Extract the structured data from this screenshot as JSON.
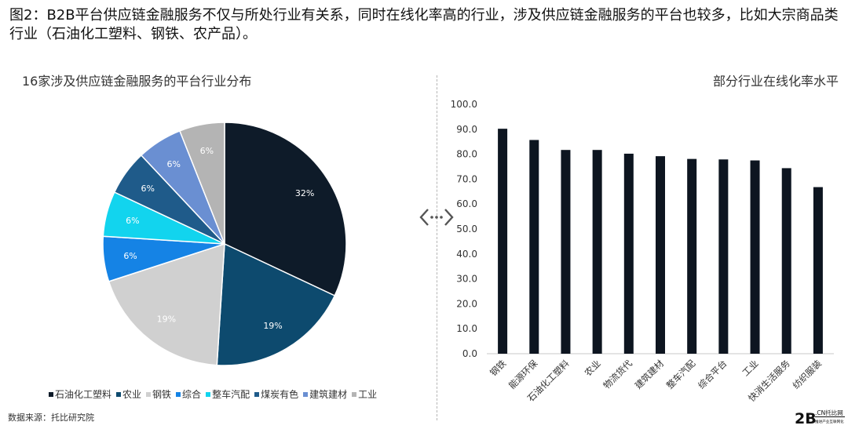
{
  "caption": "图2：B2B平台供应链金融服务不仅与所处行业有关系，同时在线化率高的行业，涉及供应链金融服务的平台也较多，比如大宗商品类行业（石油化工塑料、钢铁、农产品）。",
  "source": "数据来源：托比研究院",
  "logo": {
    "big": "2B",
    "small_top": ".CN托比网",
    "small_bottom": "推进产业互联网化"
  },
  "chart_data": [
    {
      "type": "pie",
      "title": "16家涉及供应链金融服务的平台行业分布",
      "categories": [
        "石油化工塑料",
        "农业",
        "钢铁",
        "综合",
        "整车汽配",
        "煤炭有色",
        "建筑建材",
        "工业"
      ],
      "values": [
        32,
        19,
        19,
        6,
        6,
        6,
        6,
        6
      ],
      "labels": [
        "32%",
        "19%",
        "19%",
        "6%",
        "6%",
        "6%",
        "6%",
        "6%"
      ],
      "colors": [
        "#0e1b29",
        "#0d4a6e",
        "#d0d0d0",
        "#1583e5",
        "#12d4ee",
        "#1f5b8a",
        "#6a8fd2",
        "#b4b4b4"
      ],
      "label_colors": [
        "#ffffff",
        "#ffffff",
        "#ffffff",
        "#ffffff",
        "#ffffff",
        "#ffffff",
        "#ffffff",
        "#ffffff"
      ],
      "legend_position": "bottom"
    },
    {
      "type": "bar",
      "title": "部分行业在线化率水平",
      "categories": [
        "钢铁",
        "能源环保",
        "石油化工塑料",
        "农业",
        "物流货代",
        "建筑建材",
        "整车汽配",
        "综合平台",
        "工业",
        "快消生活服务",
        "纺织服装"
      ],
      "values": [
        90.2,
        85.7,
        81.7,
        81.7,
        80.2,
        79.2,
        78.1,
        77.9,
        77.5,
        74.4,
        66.8
      ],
      "ylim": [
        0,
        100
      ],
      "yticks": [
        "0.0",
        "10.0",
        "20.0",
        "30.0",
        "40.0",
        "50.0",
        "60.0",
        "70.0",
        "80.0",
        "90.0",
        "100.0"
      ],
      "bar_color": "#0d1520",
      "grid": false
    }
  ]
}
